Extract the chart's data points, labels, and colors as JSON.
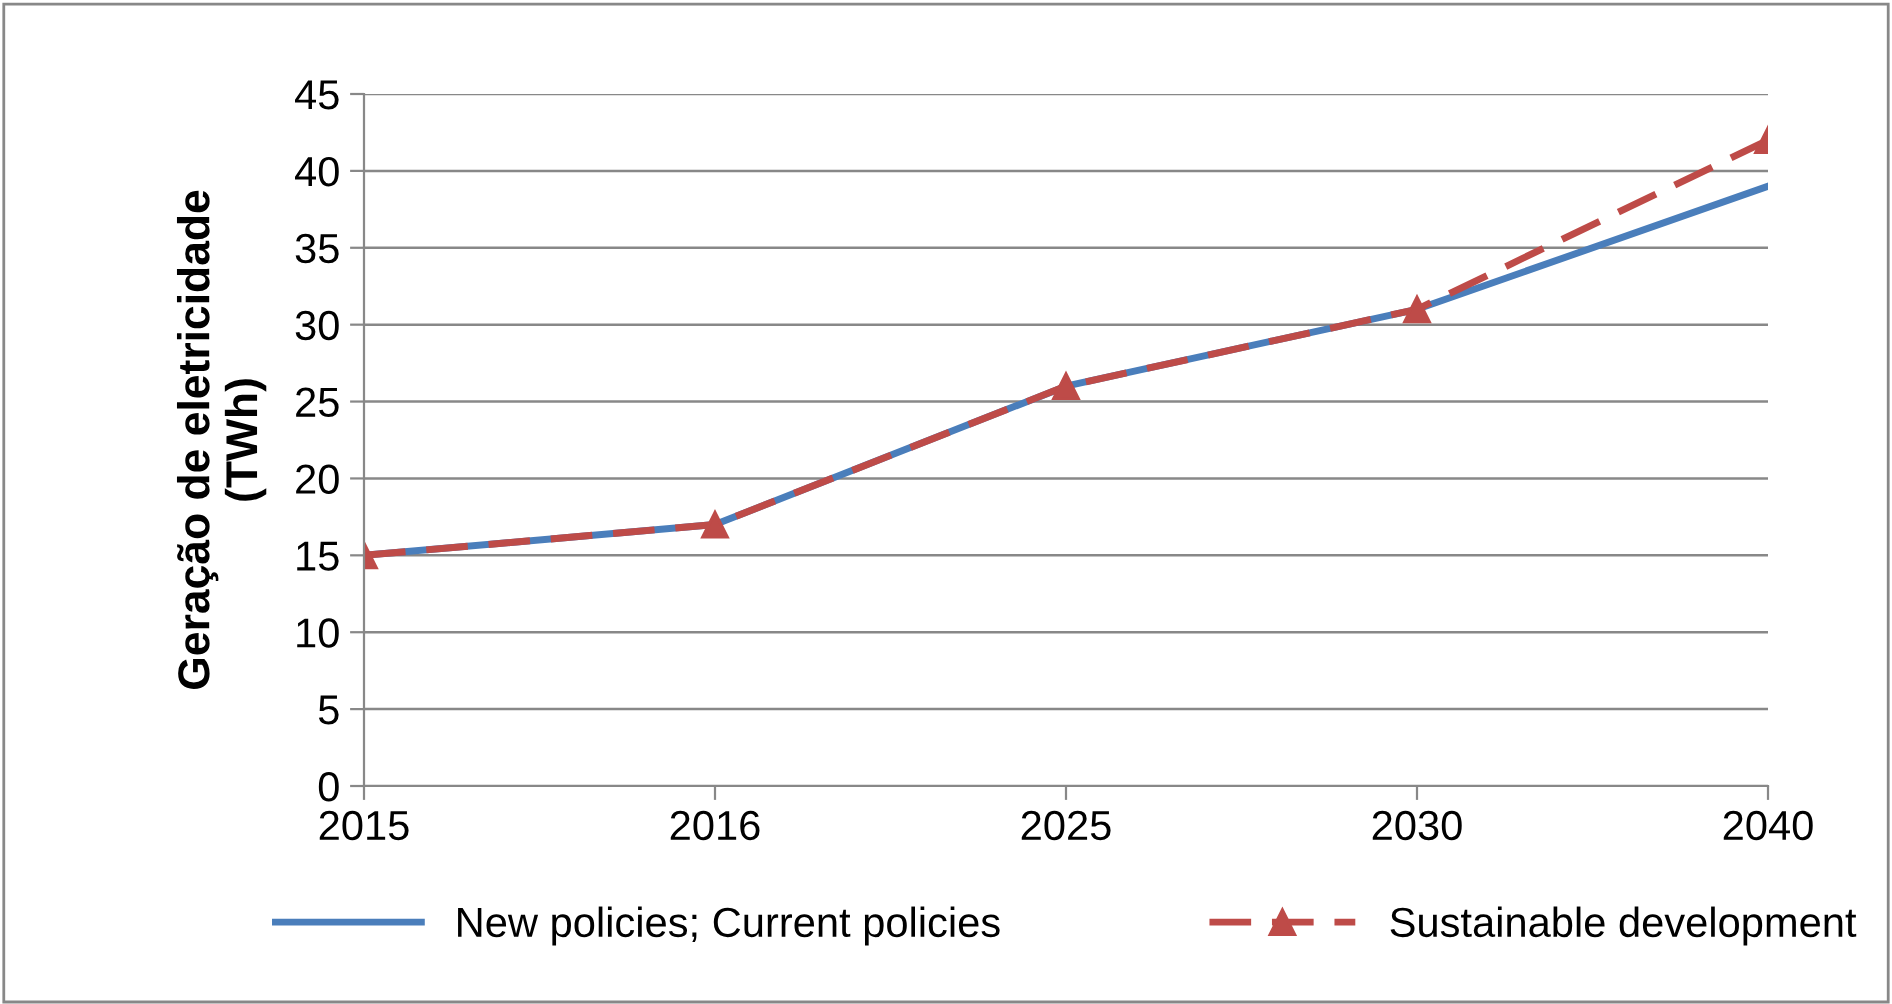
{
  "chart_data": {
    "type": "line",
    "ylabel": "Geração de eletricidade\n(TWh)",
    "categories": [
      "2015",
      "2016",
      "2025",
      "2030",
      "2040"
    ],
    "series": [
      {
        "name": "New policies; Current policies",
        "color": "#4a7ebb",
        "values": [
          15,
          17,
          26,
          31,
          39
        ],
        "marker": "none",
        "line_style": "solid"
      },
      {
        "name": "Sustainable development",
        "color": "#be4b48",
        "values": [
          15,
          17,
          26,
          31,
          42
        ],
        "marker": "triangle",
        "line_style": "dashed"
      }
    ],
    "ylim": [
      0,
      45
    ],
    "yticks": [
      0,
      5,
      10,
      15,
      20,
      25,
      30,
      35,
      40,
      45
    ],
    "grid": "y",
    "legend": "bottom"
  }
}
